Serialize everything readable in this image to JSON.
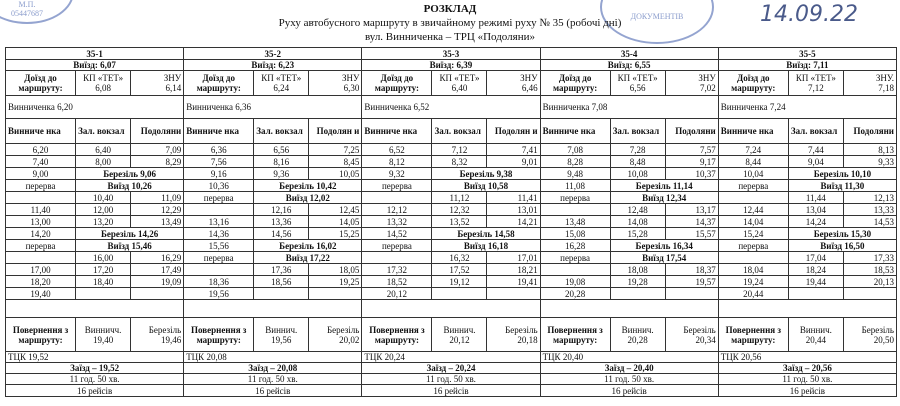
{
  "header": {
    "title": "РОЗКЛАД",
    "subtitle": "Руху автобусного маршруту в звичайному режимі руху № 35 (робочі дні)",
    "route_name": "вул. Винниченка – ТРЦ «Подоляни»",
    "date": "14.09.22"
  },
  "stamps": [
    "М.П.",
    "05447687",
    "ДОКУМЕНТІВ"
  ],
  "blocks": [
    {
      "route": "35-1",
      "exit": "Виїзд: 6,07",
      "arrival": {
        "label": "Доїзд до маршруту:",
        "stops": [
          "КП «ТЕТ»",
          "ЗНУ"
        ],
        "times": [
          "6,08",
          "6,14"
        ]
      },
      "start": "Винниченка 6,20",
      "columns": [
        "Винниче нка",
        "Зал. вокзал",
        "Подоляни"
      ],
      "rows": [
        [
          "6,20",
          "6,40",
          "7,09"
        ],
        [
          "7,40",
          "8,00",
          "8,29"
        ],
        [
          "9,00",
          "Березіль 9,06"
        ],
        [
          "перерва",
          "Виїзд 10,26"
        ],
        [
          null,
          "10,40",
          "11,09"
        ],
        [
          "11,40",
          "12,00",
          "12,29"
        ],
        [
          "13,00",
          "13,20",
          "13,49"
        ],
        [
          "14,20",
          "Березіль 14,26"
        ],
        [
          "перерва",
          "Виїзд 15,46"
        ],
        [
          null,
          "16,00",
          "16,29"
        ],
        [
          "17,00",
          "17,20",
          "17,49"
        ],
        [
          "18,20",
          "18,40",
          "19,09"
        ],
        [
          "19,40",
          null,
          null
        ]
      ],
      "return": {
        "label": "Повернення з маршруту:",
        "stops": [
          "Винничч.",
          "Березіль"
        ],
        "times": [
          "19,40",
          "19,46"
        ]
      },
      "depot": "ТЦК 19,52",
      "end": "Заїзд – 19,52",
      "duration": "11 год. 50 хв.",
      "trips": "16 рейсів"
    },
    {
      "route": "35-2",
      "exit": "Виїзд: 6,23",
      "arrival": {
        "label": "Доїзд до маршруту:",
        "stops": [
          "КП «ТЕТ»",
          "ЗНУ"
        ],
        "times": [
          "6,24",
          "6,30"
        ]
      },
      "start": "Винниченка 6,36",
      "columns": [
        "Винниче нка",
        "Зал. вокзал",
        "Подолян и"
      ],
      "rows": [
        [
          "6,36",
          "6,56",
          "7,25"
        ],
        [
          "7,56",
          "8,16",
          "8,45"
        ],
        [
          "9,16",
          "9,36",
          "10,05"
        ],
        [
          "10,36",
          "Березіль 10,42"
        ],
        [
          "перерва",
          "Виїзд 12,02"
        ],
        [
          null,
          "12,16",
          "12,45"
        ],
        [
          "13,16",
          "13,36",
          "14,05"
        ],
        [
          "14,36",
          "14,56",
          "15,25"
        ],
        [
          "15,56",
          "Березіль 16,02"
        ],
        [
          "перерва",
          "Виїзд 17,22"
        ],
        [
          null,
          "17,36",
          "18,05"
        ],
        [
          "18,36",
          "18,56",
          "19,25"
        ],
        [
          "19,56",
          null,
          null
        ]
      ],
      "return": {
        "label": "Повернення з маршруту:",
        "stops": [
          "Виннич.",
          "Березіль"
        ],
        "times": [
          "19,56",
          "20,02"
        ]
      },
      "depot": "ТЦК 20,08",
      "end": "Заїзд – 20,08",
      "duration": "11 год. 50 хв.",
      "trips": "16 рейсів"
    },
    {
      "route": "35-3",
      "exit": "Виїзд: 6,39",
      "arrival": {
        "label": "Доїзд до маршруту:",
        "stops": [
          "КП «ТЕТ»",
          "ЗНУ"
        ],
        "times": [
          "6,40",
          "6,46"
        ]
      },
      "start": "Винниченка 6,52",
      "columns": [
        "Винниче нка",
        "Зал. вокзал",
        "Подолян и"
      ],
      "rows": [
        [
          "6,52",
          "7,12",
          "7,41"
        ],
        [
          "8,12",
          "8,32",
          "9,01"
        ],
        [
          "9,32",
          "Березіль 9,38"
        ],
        [
          "перерва",
          "Виїзд 10,58"
        ],
        [
          null,
          "11,12",
          "11,41"
        ],
        [
          "12,12",
          "12,32",
          "13,01"
        ],
        [
          "13,32",
          "13,52",
          "14,21"
        ],
        [
          "14,52",
          "Березіль 14,58"
        ],
        [
          "перерва",
          "Виїзд 16,18"
        ],
        [
          null,
          "16,32",
          "17,01"
        ],
        [
          "17,32",
          "17,52",
          "18,21"
        ],
        [
          "18,52",
          "19,12",
          "19,41"
        ],
        [
          "20,12",
          null,
          null
        ]
      ],
      "return": {
        "label": "Повернення з маршруту:",
        "stops": [
          "Виннич.",
          "Березіль"
        ],
        "times": [
          "20,12",
          "20,18"
        ]
      },
      "depot": "ТЦК 20,24",
      "end": "Заїзд – 20,24",
      "duration": "11 год. 50 хв.",
      "trips": "16 рейсів"
    },
    {
      "route": "35-4",
      "exit": "Виїзд: 6,55",
      "arrival": {
        "label": "Доїзд до маршруту:",
        "stops": [
          "КП «ТЕТ»",
          "ЗНУ"
        ],
        "times": [
          "6,56",
          "7,02"
        ]
      },
      "start": "Винниченка 7,08",
      "columns": [
        "Винниче нка",
        "Зал. вокзал",
        "Подоляни"
      ],
      "rows": [
        [
          "7,08",
          "7,28",
          "7,57"
        ],
        [
          "8,28",
          "8,48",
          "9,17"
        ],
        [
          "9,48",
          "10,08",
          "10,37"
        ],
        [
          "11,08",
          "Березіль 11,14"
        ],
        [
          "перерва",
          "Виїзд 12,34"
        ],
        [
          null,
          "12,48",
          "13,17"
        ],
        [
          "13,48",
          "14,08",
          "14,37"
        ],
        [
          "15,08",
          "15,28",
          "15,57"
        ],
        [
          "16,28",
          "Березіль 16,34"
        ],
        [
          "перерва",
          "Виїзд 17,54"
        ],
        [
          null,
          "18,08",
          "18,37"
        ],
        [
          "19,08",
          "19,28",
          "19,57"
        ],
        [
          "20,28",
          null,
          null
        ]
      ],
      "return": {
        "label": "Повернення з маршруту:",
        "stops": [
          "Виннич.",
          "Березіль"
        ],
        "times": [
          "20,28",
          "20,34"
        ]
      },
      "depot": "ТЦК 20,40",
      "end": "Заїзд – 20,40",
      "duration": "11 год. 50 хв.",
      "trips": "16 рейсів"
    },
    {
      "route": "35-5",
      "exit": "Виїзд: 7,11",
      "arrival": {
        "label": "Доїзд до маршруту:",
        "stops": [
          "КП «ТЕТ»",
          "ЗНУ."
        ],
        "times": [
          "7,12",
          "7,18"
        ]
      },
      "start": "Винниченка 7,24",
      "columns": [
        "Винниче нка",
        "Зал. вокзал",
        "Подоляни"
      ],
      "rows": [
        [
          "7,24",
          "7,44",
          "8,13"
        ],
        [
          "8,44",
          "9,04",
          "9,33"
        ],
        [
          "10,04",
          "Березіль 10,10"
        ],
        [
          "перерва",
          "Виїзд 11,30"
        ],
        [
          null,
          "11,44",
          "12,13"
        ],
        [
          "12,44",
          "13,04",
          "13,33"
        ],
        [
          "14,04",
          "14,24",
          "14,53"
        ],
        [
          "15,24",
          "Березіль 15,30"
        ],
        [
          "перерва",
          "Виїзд 16,50"
        ],
        [
          null,
          "17,04",
          "17,33"
        ],
        [
          "18,04",
          "18,24",
          "18,53"
        ],
        [
          "19,24",
          "19,44",
          "20,13"
        ],
        [
          "20,44",
          null,
          null
        ]
      ],
      "return": {
        "label": "Повернення з маршруту:",
        "stops": [
          "Виннич.",
          "Березіль"
        ],
        "times": [
          "20,44",
          "20,50"
        ]
      },
      "depot": "ТЦК 20,56",
      "end": "Заїзд – 20,56",
      "duration": "11 год. 50 хв.",
      "trips": "16 рейсів"
    }
  ]
}
